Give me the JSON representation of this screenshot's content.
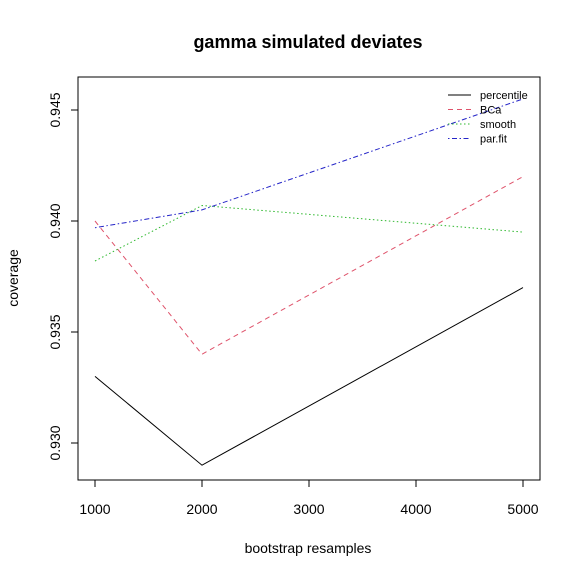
{
  "chart_data": {
    "type": "line",
    "title": "gamma simulated deviates",
    "xlabel": "bootstrap resamples",
    "ylabel": "coverage",
    "x": [
      1000,
      2000,
      5000
    ],
    "xlim": [
      1000,
      5000
    ],
    "ylim": [
      0.93,
      0.945
    ],
    "xticks": [
      "1000",
      "2000",
      "3000",
      "4000",
      "5000"
    ],
    "yticks": [
      "0.930",
      "0.935",
      "0.940",
      "0.945"
    ],
    "grid": false,
    "legend_position": "top-right",
    "series": [
      {
        "name": "percentile",
        "color": "#000000",
        "dash": "solid",
        "values": [
          0.933,
          0.929,
          0.937
        ]
      },
      {
        "name": "BCa",
        "color": "#DF536B",
        "dash": "dashed",
        "values": [
          0.94,
          0.934,
          0.942
        ]
      },
      {
        "name": "smooth",
        "color": "#2DB82D",
        "dash": "dotted",
        "values": [
          0.9382,
          0.9407,
          0.9395
        ]
      },
      {
        "name": "par.fit",
        "color": "#2525C8",
        "dash": "dotdash",
        "values": [
          0.9397,
          0.9405,
          0.9455
        ]
      }
    ]
  }
}
